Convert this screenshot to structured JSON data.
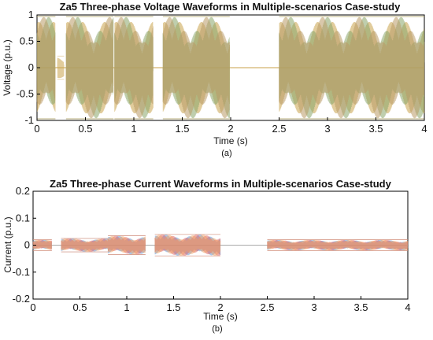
{
  "chart_data": [
    {
      "type": "line",
      "title": "Za5 Three-phase Voltage Waveforms in Multiple-scenarios Case-study",
      "xlabel": "Time (s)",
      "ylabel": "Voltage (p.u.)",
      "sublabel": "(a)",
      "xlim": [
        0,
        4
      ],
      "ylim": [
        -1,
        1
      ],
      "xticks": [
        "0",
        "0.5",
        "1",
        "1.5",
        "2",
        "2.5",
        "3",
        "3.5",
        "4"
      ],
      "yticks": [
        "1",
        "0.5",
        "0",
        "-0.5",
        "-1"
      ],
      "grid": false,
      "series": [
        {
          "color": "#c8a24a",
          "envelope": [
            {
              "x": [
                0.0,
                0.19
              ],
              "amp": 0.97
            },
            {
              "x": [
                0.21,
                0.28
              ],
              "amp": 0.22
            },
            {
              "x": [
                0.3,
                0.79
              ],
              "amp": 0.97
            },
            {
              "x": [
                0.8,
                1.2
              ],
              "amp": 0.97
            },
            {
              "x": [
                1.3,
                1.99
              ],
              "amp": 0.97
            },
            {
              "x": [
                2.5,
                4.0
              ],
              "amp": 0.97
            }
          ]
        },
        {
          "color": "#8ba66a",
          "envelope": [
            {
              "x": [
                0.0,
                0.19
              ],
              "amp": 0.97
            },
            {
              "x": [
                0.3,
                0.79
              ],
              "amp": 0.97
            },
            {
              "x": [
                0.8,
                1.2
              ],
              "amp": 0.97
            },
            {
              "x": [
                1.3,
                1.99
              ],
              "amp": 0.97
            },
            {
              "x": [
                2.5,
                4.0
              ],
              "amp": 0.97
            }
          ]
        },
        {
          "color": "#b99a66",
          "envelope": [
            {
              "x": [
                0.0,
                0.19
              ],
              "amp": 0.97
            },
            {
              "x": [
                0.3,
                0.79
              ],
              "amp": 0.97
            },
            {
              "x": [
                0.8,
                1.2
              ],
              "amp": 0.97
            },
            {
              "x": [
                1.3,
                1.99
              ],
              "amp": 0.97
            },
            {
              "x": [
                2.5,
                4.0
              ],
              "amp": 0.97
            }
          ]
        }
      ]
    },
    {
      "type": "line",
      "title": "Za5 Three-phase Current Waveforms in Multiple-scenarios Case-study",
      "xlabel": "Time (s)",
      "ylabel": "Current (p.u.)",
      "sublabel": "(b)",
      "xlim": [
        0,
        4
      ],
      "ylim": [
        -0.2,
        0.2
      ],
      "xticks": [
        "0",
        "0.5",
        "1",
        "1.5",
        "2",
        "2.5",
        "3",
        "3.5",
        "4"
      ],
      "yticks": [
        "0.2",
        "0.1",
        "0",
        "-0.1",
        "-0.2"
      ],
      "grid": false,
      "series": [
        {
          "color": "#5a8fd0",
          "envelope": [
            {
              "x": [
                0.0,
                0.2
              ],
              "amp": 0.02
            },
            {
              "x": [
                0.3,
                0.8
              ],
              "amp": 0.025
            },
            {
              "x": [
                0.8,
                1.2
              ],
              "amp": 0.035
            },
            {
              "x": [
                1.3,
                2.0
              ],
              "amp": 0.04
            },
            {
              "x": [
                2.5,
                4.0
              ],
              "amp": 0.02
            }
          ]
        },
        {
          "color": "#e06060",
          "envelope": [
            {
              "x": [
                0.0,
                0.2
              ],
              "amp": 0.02
            },
            {
              "x": [
                0.3,
                0.8
              ],
              "amp": 0.025
            },
            {
              "x": [
                0.8,
                1.2
              ],
              "amp": 0.035
            },
            {
              "x": [
                1.3,
                2.0
              ],
              "amp": 0.04
            },
            {
              "x": [
                2.5,
                4.0
              ],
              "amp": 0.02
            }
          ]
        },
        {
          "color": "#f2a060",
          "envelope": [
            {
              "x": [
                0.0,
                0.2
              ],
              "amp": 0.02
            },
            {
              "x": [
                0.3,
                0.8
              ],
              "amp": 0.025
            },
            {
              "x": [
                0.8,
                1.2
              ],
              "amp": 0.035
            },
            {
              "x": [
                1.3,
                2.0
              ],
              "amp": 0.04
            },
            {
              "x": [
                2.5,
                4.0
              ],
              "amp": 0.02
            }
          ]
        }
      ]
    }
  ]
}
